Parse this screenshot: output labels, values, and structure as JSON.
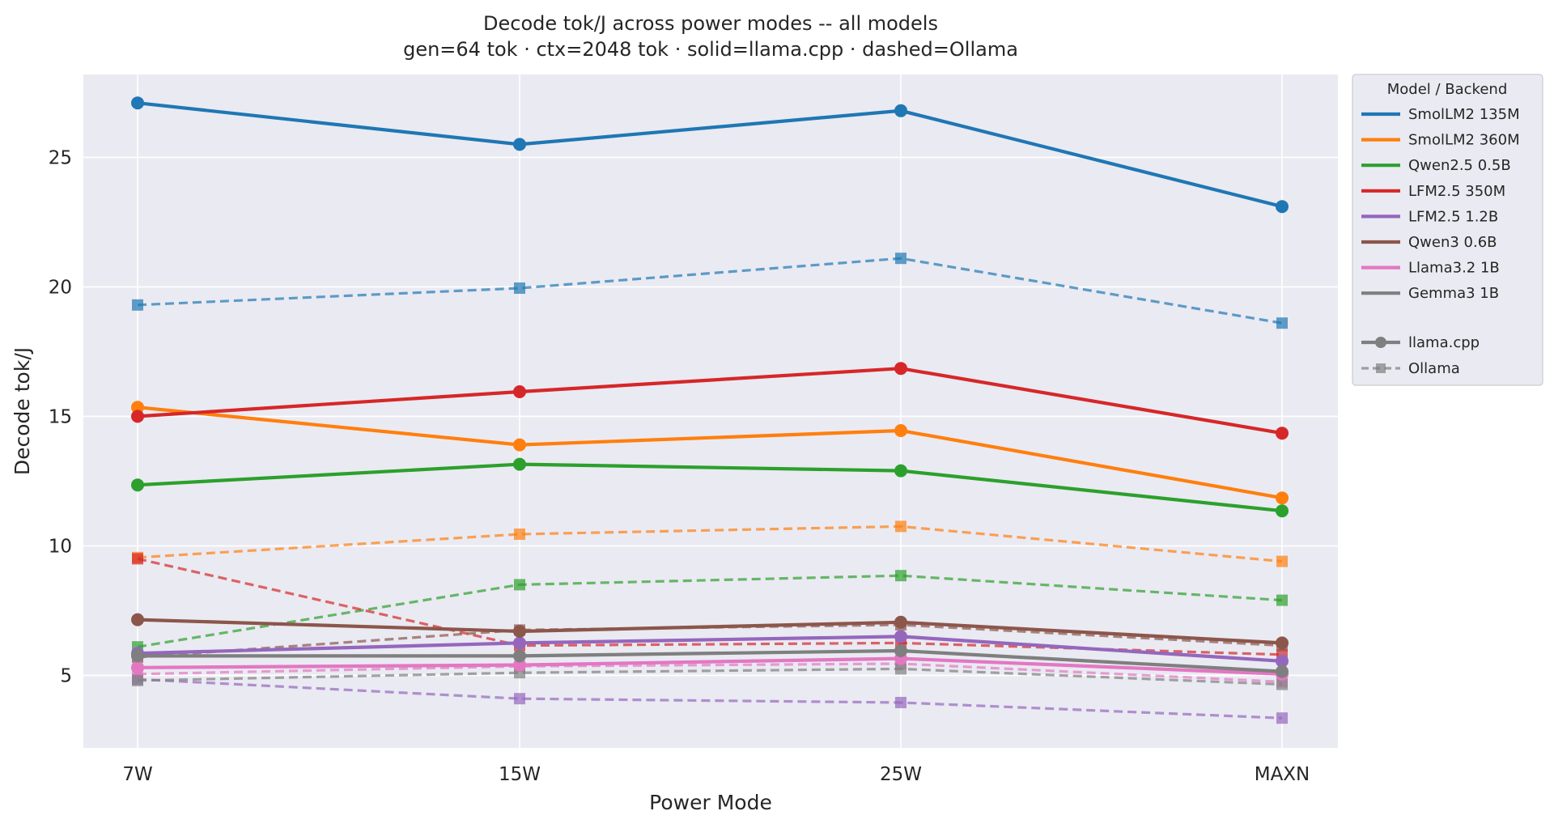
{
  "chart_data": {
    "type": "line",
    "title": "Decode tok/J across power modes -- all models",
    "subtitle": "gen=64 tok · ctx=2048 tok · solid=llama.cpp · dashed=Ollama",
    "xlabel": "Power Mode",
    "ylabel": "Decode tok/J",
    "categories": [
      "7W",
      "15W",
      "25W",
      "MAXN"
    ],
    "ylim": [
      2.2,
      28.2
    ],
    "yticks": [
      5,
      10,
      15,
      20,
      25
    ],
    "grid": true,
    "legend_title": "Model  /  Backend",
    "legend_position": "outside-right",
    "series": [
      {
        "name": "SmolLM2 135M",
        "color": "#1f77b4",
        "llamacpp": [
          27.1,
          25.5,
          26.8,
          23.1
        ],
        "ollama": [
          19.3,
          19.95,
          21.1,
          18.6
        ]
      },
      {
        "name": "SmolLM2 360M",
        "color": "#ff7f0e",
        "llamacpp": [
          15.35,
          13.9,
          14.45,
          11.85
        ],
        "ollama": [
          9.55,
          10.45,
          10.75,
          9.4
        ]
      },
      {
        "name": "Qwen2.5 0.5B",
        "color": "#2ca02c",
        "llamacpp": [
          12.35,
          13.15,
          12.9,
          11.35
        ],
        "ollama": [
          6.1,
          8.5,
          8.85,
          7.9
        ]
      },
      {
        "name": "LFM2.5 350M",
        "color": "#d62728",
        "llamacpp": [
          15.0,
          15.95,
          16.85,
          14.35
        ],
        "ollama": [
          9.5,
          6.15,
          6.25,
          5.8
        ]
      },
      {
        "name": "LFM2.5 1.2B",
        "color": "#9467bd",
        "llamacpp": [
          5.85,
          6.25,
          6.5,
          5.55
        ],
        "ollama": [
          4.85,
          4.1,
          3.95,
          3.35
        ]
      },
      {
        "name": "Qwen3 0.6B",
        "color": "#8c564b",
        "llamacpp": [
          7.15,
          6.7,
          7.05,
          6.25
        ],
        "ollama": [
          5.7,
          6.75,
          6.95,
          6.15
        ]
      },
      {
        "name": "Llama3.2 1B",
        "color": "#e377c2",
        "llamacpp": [
          5.3,
          5.4,
          5.65,
          5.05
        ],
        "ollama": [
          5.05,
          5.35,
          5.45,
          4.75
        ]
      },
      {
        "name": "Gemma3 1B",
        "color": "#7f7f7f",
        "llamacpp": [
          5.75,
          5.75,
          5.95,
          5.15
        ],
        "ollama": [
          4.8,
          5.1,
          5.25,
          4.65
        ]
      }
    ],
    "backends": [
      {
        "name": "llama.cpp",
        "style": "solid",
        "marker": "circle"
      },
      {
        "name": "Ollama",
        "style": "dashed",
        "marker": "square"
      }
    ]
  }
}
